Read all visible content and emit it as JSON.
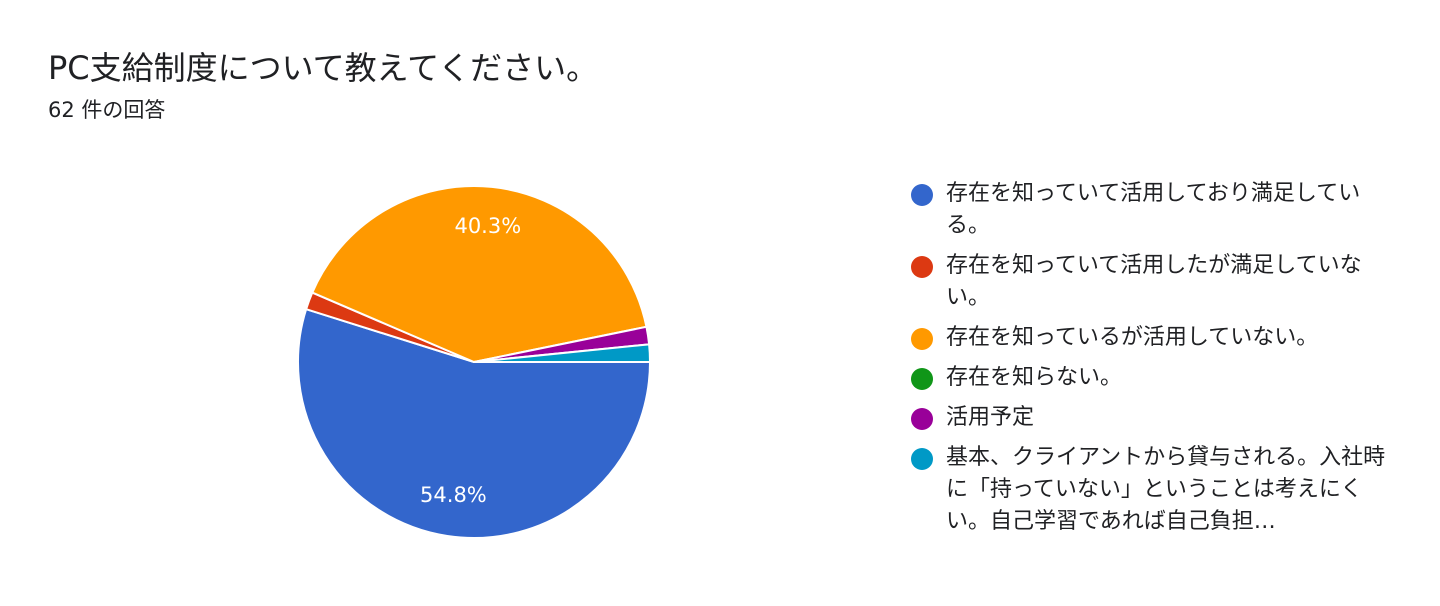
{
  "title": "PC支給制度について教えてください。",
  "subtitle": "62 件の回答",
  "chart_data": {
    "type": "pie",
    "title": "PC支給制度について教えてください。",
    "subtitle": "62 件の回答",
    "categories": [
      "存在を知っていて活用しており満足している。",
      "存在を知っていて活用したが満足していない。",
      "存在を知っているが活用していない。",
      "存在を知らない。",
      "活用予定",
      "基本、クライアントから貸与される。入社時に「持っていない」ということは考えにくい。自己学習であれば自己負担…"
    ],
    "values": [
      54.8,
      1.6,
      40.3,
      0,
      1.6,
      1.6
    ],
    "data_labels": [
      "54.8%",
      "",
      "40.3%",
      "",
      "",
      ""
    ],
    "colors": [
      "#3366cc",
      "#dc3912",
      "#ff9900",
      "#109618",
      "#990099",
      "#0099c6"
    ],
    "legend_position": "right"
  }
}
